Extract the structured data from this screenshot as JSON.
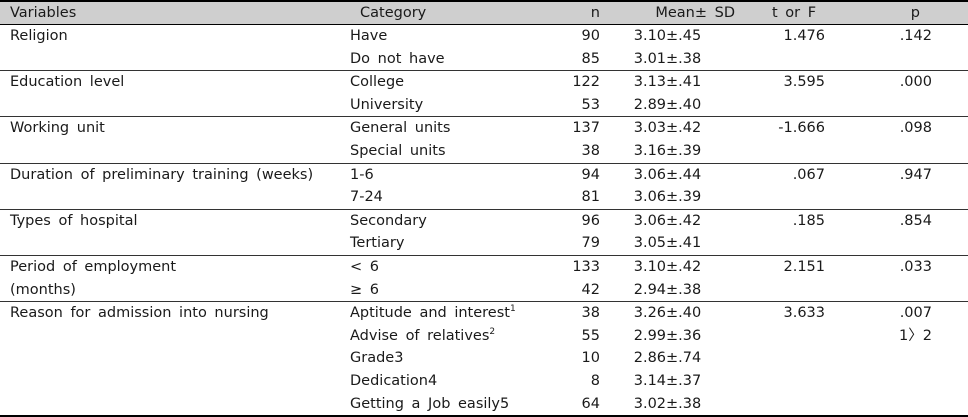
{
  "headers": {
    "variables": "Variables",
    "category": "Category",
    "n": "n",
    "mean_sd": "Mean± SD",
    "t_or_f": "t or F",
    "p": "p"
  },
  "rows": [
    {
      "variable": "Religion",
      "category": "Have",
      "n": "90",
      "mean_sd": "3.10±.45",
      "t": "1.476",
      "p": ".142"
    },
    {
      "variable": "",
      "category": "Do not have",
      "n": "85",
      "mean_sd": "3.01±.38",
      "t": "",
      "p": ""
    },
    {
      "variable": "Education level",
      "category": "College",
      "n": "122",
      "mean_sd": "3.13±.41",
      "t": "3.595",
      "p": ".000"
    },
    {
      "variable": "",
      "category": "University",
      "n": "53",
      "mean_sd": "2.89±.40",
      "t": "",
      "p": ""
    },
    {
      "variable": "Working unit",
      "category": "General units",
      "n": "137",
      "mean_sd": "3.03±.42",
      "t": "-1.666",
      "p": ".098"
    },
    {
      "variable": "",
      "category": "Special units",
      "n": "38",
      "mean_sd": "3.16±.39",
      "t": "",
      "p": ""
    },
    {
      "variable": "Duration of preliminary training (weeks)",
      "category": "1-6",
      "n": "94",
      "mean_sd": "3.06±.44",
      "t": ".067",
      "p": ".947"
    },
    {
      "variable": "",
      "category": "7-24",
      "n": "81",
      "mean_sd": "3.06±.39",
      "t": "",
      "p": ""
    },
    {
      "variable": "Types of hospital",
      "category": "Secondary",
      "n": "96",
      "mean_sd": "3.06±.42",
      "t": ".185",
      "p": ".854"
    },
    {
      "variable": "",
      "category": "Tertiary",
      "n": "79",
      "mean_sd": "3.05±.41",
      "t": "",
      "p": ""
    },
    {
      "variable": "Period of employment",
      "category": "< 6",
      "n": "133",
      "mean_sd": "3.10±.42",
      "t": "2.151",
      "p": ".033"
    },
    {
      "variable": "(months)",
      "category": "≥ 6",
      "n": "42",
      "mean_sd": "2.94±.38",
      "t": "",
      "p": ""
    },
    {
      "variable": "Reason for admission into nursing",
      "category": "Aptitude and interest",
      "category_sup": "1",
      "n": "38",
      "mean_sd": "3.26±.40",
      "t": "3.633",
      "p": ".007"
    },
    {
      "variable": "",
      "category": "Advise of relatives",
      "category_sup": "2",
      "n": "55",
      "mean_sd": "2.99±.36",
      "t": "",
      "p": "1〉2"
    },
    {
      "variable": "",
      "category": "Grade3",
      "n": "10",
      "mean_sd": "2.86±.74",
      "t": "",
      "p": ""
    },
    {
      "variable": "",
      "category": "Dedication4",
      "n": "8",
      "mean_sd": "3.14±.37",
      "t": "",
      "p": ""
    },
    {
      "variable": "",
      "category": "Getting a Job easily5",
      "n": "64",
      "mean_sd": "3.02±.38",
      "t": "",
      "p": ""
    }
  ]
}
